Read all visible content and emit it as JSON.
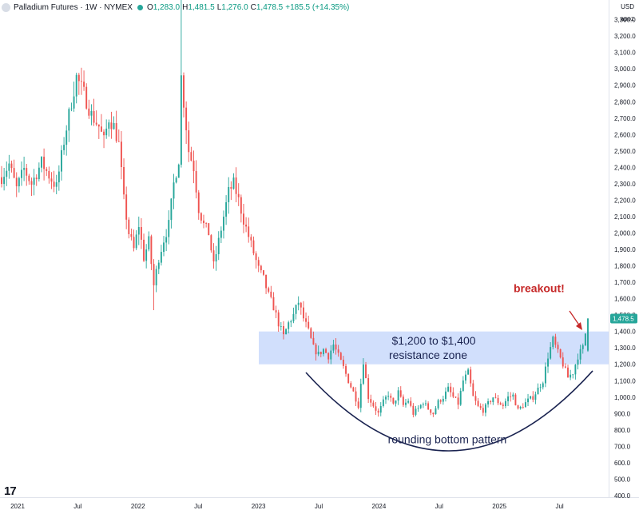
{
  "header": {
    "symbol": "Palladium Futures · 1W · NYMEX",
    "open_label": "O",
    "open": "1,283.0",
    "high_label": "H",
    "high": "1,481.5",
    "low_label": "L",
    "low": "1,276.0",
    "close_label": "C",
    "close": "1,478.5",
    "change": "+185.5 (+14.35%)"
  },
  "axis": {
    "currency": "USD",
    "unit": "apoz"
  },
  "logo": "17",
  "colors": {
    "up": "#26a69a",
    "down": "#ef5350",
    "zone": "#c9d9fb",
    "annotation": "#c62828",
    "curve": "#1a2350"
  },
  "chart_data": {
    "type": "candlestick",
    "title": "Palladium Futures · 1W · NYMEX",
    "ylim": [
      390,
      3420
    ],
    "y_ticks": [
      400,
      500,
      600,
      700,
      800,
      900,
      1000,
      1100,
      1200,
      1300,
      1400,
      1500,
      1600,
      1700,
      1800,
      1900,
      2000,
      2100,
      2200,
      2300,
      2400,
      2500,
      2600,
      2700,
      2800,
      2900,
      3000,
      3100,
      3200,
      3300
    ],
    "x_ticks": [
      "2021",
      "Jul",
      "2022",
      "Jul",
      "2023",
      "Jul",
      "2024",
      "Jul",
      "2025",
      "Jul"
    ],
    "resistance_zone": {
      "low": 1200,
      "high": 1400,
      "label_line1": "$1,200 to $1,400",
      "label_line2": "resistance zone"
    },
    "annotations": {
      "breakout": "breakout!",
      "pattern": "rounding bottom pattern"
    },
    "last_price": 1478.5,
    "anchors": [
      [
        0,
        2340
      ],
      [
        3,
        2420
      ],
      [
        6,
        2270
      ],
      [
        9,
        2390
      ],
      [
        12,
        2300
      ],
      [
        16,
        2430
      ],
      [
        19,
        2350
      ],
      [
        22,
        2280
      ],
      [
        25,
        2560
      ],
      [
        28,
        2800
      ],
      [
        30,
        2950
      ],
      [
        33,
        2850
      ],
      [
        36,
        2720
      ],
      [
        39,
        2650
      ],
      [
        41,
        2560
      ],
      [
        43,
        2700
      ],
      [
        45,
        2650
      ],
      [
        47,
        2540
      ],
      [
        49,
        2200
      ],
      [
        51,
        2000
      ],
      [
        53,
        1900
      ],
      [
        55,
        2050
      ],
      [
        57,
        1850
      ],
      [
        59,
        1950
      ],
      [
        61,
        1680
      ],
      [
        63,
        1850
      ],
      [
        65,
        1960
      ],
      [
        67,
        2050
      ],
      [
        69,
        2300
      ],
      [
        71,
        2450
      ],
      [
        72,
        2950
      ],
      [
        73,
        2800
      ],
      [
        75,
        2500
      ],
      [
        77,
        2400
      ],
      [
        79,
        2150
      ],
      [
        81,
        2050
      ],
      [
        83,
        2000
      ],
      [
        85,
        1800
      ],
      [
        87,
        1950
      ],
      [
        89,
        2100
      ],
      [
        91,
        2250
      ],
      [
        93,
        2300
      ],
      [
        95,
        2200
      ],
      [
        97,
        2080
      ],
      [
        99,
        1980
      ],
      [
        101,
        1880
      ],
      [
        103,
        1780
      ],
      [
        105,
        1720
      ],
      [
        107,
        1620
      ],
      [
        109,
        1550
      ],
      [
        111,
        1450
      ],
      [
        113,
        1370
      ],
      [
        115,
        1450
      ],
      [
        117,
        1500
      ],
      [
        119,
        1580
      ],
      [
        121,
        1480
      ],
      [
        123,
        1400
      ],
      [
        125,
        1300
      ],
      [
        127,
        1260
      ],
      [
        129,
        1290
      ],
      [
        131,
        1250
      ],
      [
        133,
        1320
      ],
      [
        135,
        1250
      ],
      [
        137,
        1180
      ],
      [
        139,
        1100
      ],
      [
        141,
        1030
      ],
      [
        143,
        950
      ],
      [
        145,
        1220
      ],
      [
        147,
        1000
      ],
      [
        149,
        950
      ],
      [
        151,
        900
      ],
      [
        153,
        970
      ],
      [
        155,
        1020
      ],
      [
        157,
        950
      ],
      [
        159,
        1030
      ],
      [
        161,
        950
      ],
      [
        163,
        980
      ],
      [
        165,
        900
      ],
      [
        167,
        930
      ],
      [
        169,
        970
      ],
      [
        171,
        930
      ],
      [
        173,
        900
      ],
      [
        175,
        970
      ],
      [
        177,
        1000
      ],
      [
        179,
        1050
      ],
      [
        181,
        1000
      ],
      [
        183,
        960
      ],
      [
        185,
        1100
      ],
      [
        187,
        1150
      ],
      [
        189,
        1000
      ],
      [
        191,
        940
      ],
      [
        193,
        920
      ],
      [
        195,
        960
      ],
      [
        197,
        1000
      ],
      [
        199,
        970
      ],
      [
        201,
        950
      ],
      [
        203,
        1000
      ],
      [
        205,
        1010
      ],
      [
        207,
        920
      ],
      [
        209,
        950
      ],
      [
        211,
        980
      ],
      [
        213,
        1000
      ],
      [
        215,
        1050
      ],
      [
        217,
        1100
      ],
      [
        219,
        1250
      ],
      [
        221,
        1350
      ],
      [
        223,
        1270
      ],
      [
        225,
        1200
      ],
      [
        227,
        1120
      ],
      [
        229,
        1150
      ],
      [
        231,
        1250
      ],
      [
        233,
        1300
      ],
      [
        235,
        1478.5
      ]
    ]
  }
}
